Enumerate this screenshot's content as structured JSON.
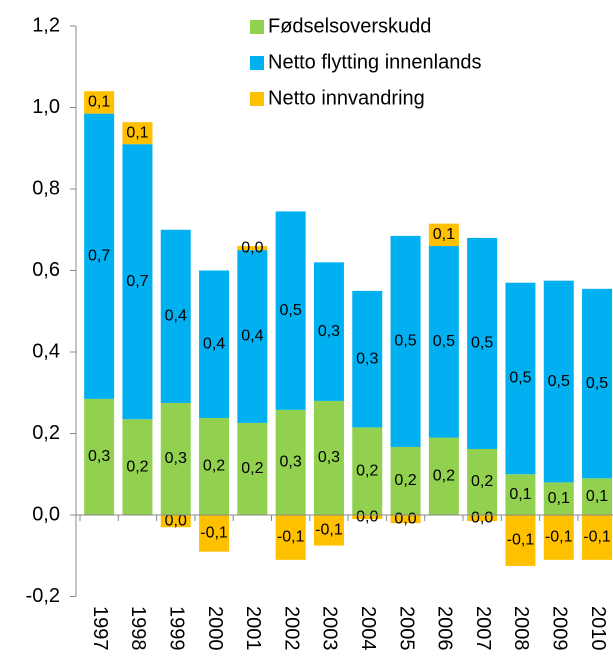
{
  "chart_data": {
    "type": "stacked_bar",
    "categories": [
      "1997",
      "1998",
      "1999",
      "2000",
      "2001",
      "2002",
      "2003",
      "2004",
      "2005",
      "2006",
      "2007",
      "2008",
      "2009",
      "2010"
    ],
    "series": [
      {
        "name": "Fødselsoverskudd",
        "color": "#92d050",
        "values": [
          0.285,
          0.235,
          0.275,
          0.238,
          0.226,
          0.258,
          0.28,
          0.215,
          0.167,
          0.19,
          0.162,
          0.1,
          0.08,
          0.09
        ],
        "value_labels": [
          "0,3",
          "0,2",
          "0,3",
          "0,2",
          "0,2",
          "0,3",
          "0,3",
          "0,2",
          "0,2",
          "0,2",
          "0,2",
          "0,1",
          "0,1",
          "0,1"
        ]
      },
      {
        "name": "Netto flytting innenlands",
        "color": "#00b0f0",
        "values": [
          0.7,
          0.675,
          0.425,
          0.362,
          0.424,
          0.487,
          0.34,
          0.335,
          0.518,
          0.47,
          0.518,
          0.47,
          0.495,
          0.465
        ],
        "value_labels": [
          "0,7",
          "0,7",
          "0,4",
          "0,4",
          "0,4",
          "0,5",
          "0,3",
          "0,3",
          "0,5",
          "0,5",
          "0,5",
          "0,5",
          "0,5",
          "0,5"
        ]
      },
      {
        "name": "Netto innvandring",
        "color": "#ffc000",
        "values": [
          0.055,
          0.054,
          -0.03,
          -0.09,
          0.01,
          -0.11,
          -0.075,
          -0.01,
          -0.02,
          0.055,
          -0.015,
          -0.125,
          -0.11,
          -0.11
        ],
        "value_labels": [
          "0,1",
          "0,1",
          "0,0",
          "-0,1",
          "0,0",
          "-0,1",
          "-0,1",
          "0,0",
          "0,0",
          "0,1",
          "0,0",
          "-0,1",
          "-0,1",
          "-0,1"
        ]
      }
    ],
    "ylim": [
      -0.2,
      1.2
    ],
    "yticks": [
      {
        "value": -0.2,
        "label": "-0,2"
      },
      {
        "value": 0,
        "label": "0,0"
      },
      {
        "value": 0.2,
        "label": "0,2"
      },
      {
        "value": 0.4,
        "label": "0,4"
      },
      {
        "value": 0.6,
        "label": "0,6"
      },
      {
        "value": 0.8,
        "label": "0,8"
      },
      {
        "value": 1.0,
        "label": "1,0"
      },
      {
        "value": 1.2,
        "label": "1,2"
      }
    ],
    "legend": "top"
  }
}
